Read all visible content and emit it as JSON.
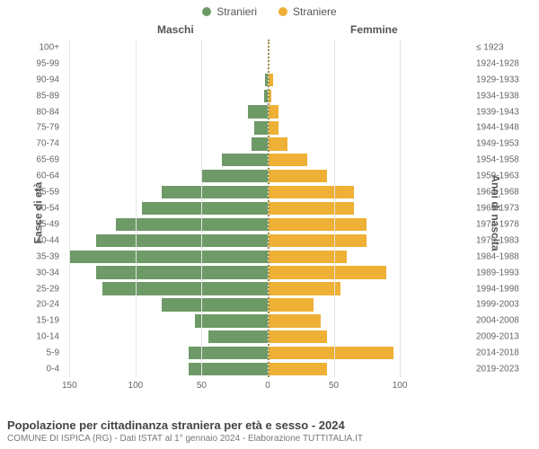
{
  "type": "population-pyramid",
  "legend": [
    {
      "label": "Stranieri",
      "color": "#6d9a66"
    },
    {
      "label": "Straniere",
      "color": "#eeb035"
    }
  ],
  "column_titles": {
    "left": "Maschi",
    "right": "Femmine"
  },
  "y_axis_left": "Fasce di età",
  "y_axis_right": "Anni di nascita",
  "colors": {
    "male": "#6d9a66",
    "female": "#eeb035",
    "grid": "#e4e4e4",
    "center": "#9a8f4d",
    "background": "#ffffff"
  },
  "x_axis": {
    "male_max": 155,
    "female_max": 155,
    "ticks_male": [
      150,
      100,
      50,
      0
    ],
    "ticks_female": [
      0,
      50,
      100
    ]
  },
  "rows": [
    {
      "age": "0-4",
      "birth": "2019-2023",
      "m": 60,
      "f": 45
    },
    {
      "age": "5-9",
      "birth": "2014-2018",
      "m": 60,
      "f": 95
    },
    {
      "age": "10-14",
      "birth": "2009-2013",
      "m": 45,
      "f": 45
    },
    {
      "age": "15-19",
      "birth": "2004-2008",
      "m": 55,
      "f": 40
    },
    {
      "age": "20-24",
      "birth": "1999-2003",
      "m": 80,
      "f": 35
    },
    {
      "age": "25-29",
      "birth": "1994-1998",
      "m": 125,
      "f": 55
    },
    {
      "age": "30-34",
      "birth": "1989-1993",
      "m": 130,
      "f": 90
    },
    {
      "age": "35-39",
      "birth": "1984-1988",
      "m": 150,
      "f": 60
    },
    {
      "age": "40-44",
      "birth": "1979-1983",
      "m": 130,
      "f": 75
    },
    {
      "age": "45-49",
      "birth": "1974-1978",
      "m": 115,
      "f": 75
    },
    {
      "age": "50-54",
      "birth": "1969-1973",
      "m": 95,
      "f": 65
    },
    {
      "age": "55-59",
      "birth": "1964-1968",
      "m": 80,
      "f": 65
    },
    {
      "age": "60-64",
      "birth": "1959-1963",
      "m": 50,
      "f": 45
    },
    {
      "age": "65-69",
      "birth": "1954-1958",
      "m": 35,
      "f": 30
    },
    {
      "age": "70-74",
      "birth": "1949-1953",
      "m": 12,
      "f": 15
    },
    {
      "age": "75-79",
      "birth": "1944-1948",
      "m": 10,
      "f": 8
    },
    {
      "age": "80-84",
      "birth": "1939-1943",
      "m": 15,
      "f": 8
    },
    {
      "age": "85-89",
      "birth": "1934-1938",
      "m": 3,
      "f": 3
    },
    {
      "age": "90-94",
      "birth": "1929-1933",
      "m": 2,
      "f": 4
    },
    {
      "age": "95-99",
      "birth": "1924-1928",
      "m": 0,
      "f": 0
    },
    {
      "age": "100+",
      "birth": "≤ 1923",
      "m": 0,
      "f": 0
    }
  ],
  "footer": {
    "title": "Popolazione per cittadinanza straniera per età e sesso - 2024",
    "subtitle": "COMUNE DI ISPICA (RG) - Dati ISTAT al 1° gennaio 2024 - Elaborazione TUTTITALIA.IT"
  },
  "style": {
    "title_fontsize": 13,
    "subtitle_fontsize": 10,
    "tick_fontsize": 10,
    "column_title_fontsize": 12,
    "bar_height_ratio": 0.8
  }
}
